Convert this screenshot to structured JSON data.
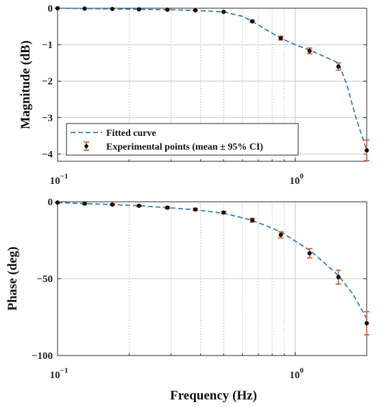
{
  "chart_data": [
    {
      "type": "line",
      "ylabel": "Magnitude (dB)",
      "xlabel": "",
      "xscale": "log",
      "xlim": [
        0.1,
        2.0
      ],
      "ylim": [
        -4.2,
        0
      ],
      "xticks": [
        {
          "value": 0.1,
          "base": "10",
          "exp": "−1"
        },
        {
          "value": 1.0,
          "base": "10",
          "exp": "0"
        }
      ],
      "yticks": [
        {
          "value": 0,
          "label": "0"
        },
        {
          "value": -1,
          "label": "−1"
        },
        {
          "value": -2,
          "label": "−2"
        },
        {
          "value": -3,
          "label": "−3"
        },
        {
          "value": -4,
          "label": "−4"
        }
      ],
      "grid": true,
      "legend_placement": "bottom-left",
      "series": [
        {
          "name": "Fitted curve",
          "style": "dashed-line",
          "x": [
            0.1,
            0.13,
            0.17,
            0.22,
            0.29,
            0.38,
            0.5,
            0.6,
            0.66,
            0.75,
            0.87,
            1.0,
            1.15,
            1.3,
            1.52,
            1.65,
            1.8,
            2.0
          ],
          "y": [
            0.0,
            -0.01,
            -0.02,
            -0.03,
            -0.04,
            -0.06,
            -0.1,
            -0.22,
            -0.36,
            -0.58,
            -0.82,
            -1.0,
            -1.15,
            -1.3,
            -1.5,
            -2.1,
            -3.0,
            -3.9
          ]
        },
        {
          "name": "Experimental points (mean ± 95% CI)",
          "style": "errorbar-points",
          "x": [
            0.1,
            0.13,
            0.17,
            0.22,
            0.29,
            0.38,
            0.5,
            0.66,
            0.87,
            1.15,
            1.52,
            2.0
          ],
          "y": [
            0.0,
            -0.01,
            -0.02,
            -0.03,
            -0.04,
            -0.06,
            -0.1,
            -0.36,
            -0.82,
            -1.17,
            -1.6,
            -3.9
          ],
          "err": [
            0.0,
            0.0,
            0.0,
            0.0,
            0.0,
            0.0,
            0.0,
            0.03,
            0.05,
            0.08,
            0.1,
            0.28
          ]
        }
      ]
    },
    {
      "type": "line",
      "ylabel": "Phase (deg)",
      "xlabel": "Frequency (Hz)",
      "xscale": "log",
      "xlim": [
        0.1,
        2.0
      ],
      "ylim": [
        -100,
        0
      ],
      "xticks": [
        {
          "value": 0.1,
          "base": "10",
          "exp": "−1"
        },
        {
          "value": 1.0,
          "base": "10",
          "exp": "0"
        }
      ],
      "yticks": [
        {
          "value": 0,
          "label": "0"
        },
        {
          "value": -50,
          "label": "−50"
        },
        {
          "value": -100,
          "label": "−100"
        }
      ],
      "grid": true,
      "series": [
        {
          "name": "Fitted curve",
          "style": "dashed-line",
          "x": [
            0.1,
            0.13,
            0.17,
            0.22,
            0.29,
            0.38,
            0.5,
            0.66,
            0.87,
            1.0,
            1.15,
            1.3,
            1.52,
            1.75,
            2.0
          ],
          "y": [
            -0.5,
            -1.2,
            -1.8,
            -2.6,
            -3.8,
            -5.2,
            -7.5,
            -12.0,
            -19.5,
            -25.5,
            -31.5,
            -38.5,
            -48.0,
            -60.0,
            -76.0
          ]
        },
        {
          "name": "Experimental points (mean ± 95% CI)",
          "style": "errorbar-points",
          "x": [
            0.1,
            0.13,
            0.17,
            0.22,
            0.29,
            0.38,
            0.5,
            0.66,
            0.87,
            1.15,
            1.52,
            2.0
          ],
          "y": [
            -0.5,
            -1.2,
            -1.8,
            -2.6,
            -3.8,
            -5.0,
            -7.0,
            -12.0,
            -21.5,
            -33.5,
            -49.0,
            -79.0
          ],
          "err": [
            0.3,
            0.4,
            0.5,
            0.5,
            0.6,
            0.7,
            0.8,
            1.2,
            2.0,
            3.0,
            4.5,
            7.5
          ]
        }
      ]
    }
  ],
  "colors": {
    "fitted_curve": "#2E7DC2",
    "error_bar": "#D9662B",
    "marker_fill": "#111111",
    "grid": "#C8C8C8"
  }
}
